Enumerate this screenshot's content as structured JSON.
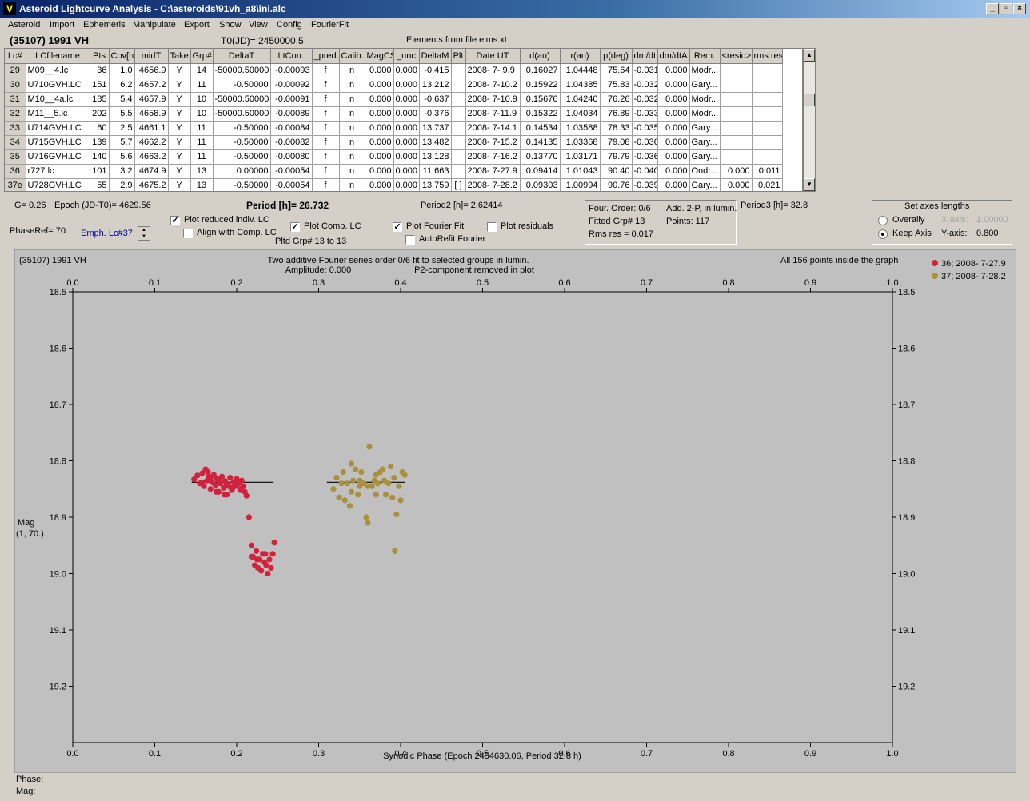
{
  "window": {
    "title": "Asteroid Lightcurve Analysis - C:\\asteroids\\91vh_a8\\ini.alc",
    "app_icon": "V"
  },
  "menu": [
    "Asteroid",
    "Import",
    "Ephemeris",
    "Manipulate",
    "Export",
    "Show",
    "View",
    "Config",
    "FourierFit"
  ],
  "header": {
    "asteroid": "(35107) 1991 VH",
    "t0": "T0(JD)= 2450000.5",
    "elements": "Elements from file elms.xt"
  },
  "table": {
    "columns": [
      "Lc#",
      "LCfilename",
      "Pts",
      "Cov[h]",
      "midT",
      "Take",
      "Grp#",
      "DeltaT",
      "LtCorr.",
      "_pred.",
      "Calib.",
      "MagCS",
      "_unc",
      "DeltaM",
      "Plt",
      "Date UT",
      "d(au)",
      "r(au)",
      "p(deg)",
      "dm/dt",
      "dm/dtA",
      "Rem.",
      "<resid>",
      "rms res"
    ],
    "rows": [
      [
        "29",
        "M09__4.lc",
        "36",
        "1.0",
        "4656.9",
        "Y",
        "14",
        "-50000.50000",
        "-0.00093",
        "f",
        "n",
        "0.000",
        "0.000",
        "-0.415",
        "",
        "2008- 7- 9.9",
        "0.16027",
        "1.04448",
        "75.64",
        "-0.031",
        "0.000",
        "Modr...",
        "",
        ""
      ],
      [
        "30",
        "U710GVH.LC",
        "151",
        "6.2",
        "4657.2",
        "Y",
        "11",
        "-0.50000",
        "-0.00092",
        "f",
        "n",
        "0.000",
        "0.000",
        "13.212",
        "",
        "2008- 7-10.2",
        "0.15922",
        "1.04385",
        "75.83",
        "-0.032",
        "0.000",
        "Gary...",
        "",
        ""
      ],
      [
        "31",
        "M10__4a.lc",
        "185",
        "5.4",
        "4657.9",
        "Y",
        "10",
        "-50000.50000",
        "-0.00091",
        "f",
        "n",
        "0.000",
        "0.000",
        "-0.637",
        "",
        "2008- 7-10.9",
        "0.15676",
        "1.04240",
        "76.26",
        "-0.032",
        "0.000",
        "Modr...",
        "",
        ""
      ],
      [
        "32",
        "M11__5.lc",
        "202",
        "5.5",
        "4658.9",
        "Y",
        "10",
        "-50000.50000",
        "-0.00089",
        "f",
        "n",
        "0.000",
        "0.000",
        "-0.376",
        "",
        "2008- 7-11.9",
        "0.15322",
        "1.04034",
        "76.89",
        "-0.033",
        "0.000",
        "Modr...",
        "",
        ""
      ],
      [
        "33",
        "U714GVH.LC",
        "60",
        "2.5",
        "4661.1",
        "Y",
        "11",
        "-0.50000",
        "-0.00084",
        "f",
        "n",
        "0.000",
        "0.000",
        "13.737",
        "",
        "2008- 7-14.1",
        "0.14534",
        "1.03588",
        "78.33",
        "-0.035",
        "0.000",
        "Gary...",
        "",
        ""
      ],
      [
        "34",
        "U715GVH.LC",
        "139",
        "5.7",
        "4662.2",
        "Y",
        "11",
        "-0.50000",
        "-0.00082",
        "f",
        "n",
        "0.000",
        "0.000",
        "13.482",
        "",
        "2008- 7-15.2",
        "0.14135",
        "1.03368",
        "79.08",
        "-0.036",
        "0.000",
        "Gary...",
        "",
        ""
      ],
      [
        "35",
        "U716GVH.LC",
        "140",
        "5.6",
        "4663.2",
        "Y",
        "11",
        "-0.50000",
        "-0.00080",
        "f",
        "n",
        "0.000",
        "0.000",
        "13.128",
        "",
        "2008- 7-16.2",
        "0.13770",
        "1.03171",
        "79.79",
        "-0.036",
        "0.000",
        "Gary...",
        "",
        ""
      ],
      [
        "36",
        "r727.lc",
        "101",
        "3.2",
        "4674.9",
        "Y",
        "13",
        "0.00000",
        "-0.00054",
        "f",
        "n",
        "0.000",
        "0.000",
        "11.663",
        "",
        "2008- 7-27.9",
        "0.09414",
        "1.01043",
        "90.40",
        "-0.040",
        "0.000",
        "Ondr...",
        "0.000",
        "0.011"
      ],
      [
        "37e",
        "U728GVH.LC",
        "55",
        "2.9",
        "4675.2",
        "Y",
        "13",
        "-0.50000",
        "-0.00054",
        "f",
        "n",
        "0.000",
        "0.000",
        "13.759",
        "[ ]",
        "2008- 7-28.2",
        "0.09303",
        "1.00994",
        "90.76",
        "-0.039",
        "0.000",
        "Gary...",
        "0.000",
        "0.021"
      ]
    ]
  },
  "controls": {
    "g": "G= 0.26",
    "epoch": "Epoch (JD-T0)= 4629.56",
    "period": "Period [h]= 26.732",
    "period2": "Period2 [h]= 2.62414",
    "period3": "Period3 [h]= 32.8",
    "phaseref": "PhaseRef= 70.",
    "emph": "Emph. Lc#37:",
    "plot_reduced": "Plot reduced indiv. LC",
    "align": "Align with Comp. LC",
    "plot_comp": "Plot Comp. LC",
    "pltd_grp": "Pltd Grp#  13 to   13",
    "plot_fourier": "Plot Fourier Fit",
    "autorefit": "AutoRefit Fourier",
    "plot_residuals": "Plot residuals",
    "four_order": "Four. Order:  0/6",
    "add2p": "Add. 2-P, in lumin.",
    "fitted_grp": "Fitted Grp# 13",
    "points": "Points: 117",
    "rms": "Rms res     = 0.017",
    "axes_title": "Set axes lengths",
    "overally": "Overally",
    "keep_axis": "Keep Axis",
    "xaxis_label": "X-axis:",
    "xaxis_val": "1.00000",
    "yaxis_label": "Y-axis:",
    "yaxis_val": "0.800"
  },
  "plot": {
    "asteroid": "(35107) 1991 VH",
    "desc1": "Two additive Fourier series order 0/6 fit to selected groups in lumin.",
    "desc2": "Amplitude: 0.000",
    "desc3": "P2-component removed in plot",
    "inside": "All 156 points inside the graph",
    "legend": [
      {
        "name": "36; 2008- 7-27.9",
        "color": "#d0223c"
      },
      {
        "name": "37; 2008- 7-28.2",
        "color": "#a8903c"
      }
    ],
    "ylabel1": "Mag",
    "ylabel2": "(1, 70.)",
    "xlabel": "Synodic Phase (Epoch 2454630.06, Period 32.8 h)"
  },
  "status": {
    "phase": "Phase:",
    "mag": "Mag:"
  },
  "chart_data": {
    "type": "scatter",
    "xlim": [
      0,
      1
    ],
    "ylim": [
      18.5,
      19.3
    ],
    "y_inverted": true,
    "x_ticks": [
      0.0,
      0.1,
      0.2,
      0.3,
      0.4,
      0.5,
      0.6,
      0.7,
      0.8,
      0.9,
      1.0
    ],
    "y_ticks": [
      18.5,
      18.6,
      18.7,
      18.8,
      18.9,
      19.0,
      19.1,
      19.2
    ],
    "fit_lines": [
      {
        "series": 0,
        "x": [
          0.145,
          0.245
        ],
        "y": 18.838
      },
      {
        "series": 1,
        "x": [
          0.31,
          0.405
        ],
        "y": 18.838
      }
    ],
    "series": [
      {
        "name": "36; 2008- 7-27.9",
        "color": "#d0223c",
        "points": [
          [
            0.148,
            18.833
          ],
          [
            0.152,
            18.826
          ],
          [
            0.155,
            18.84
          ],
          [
            0.158,
            18.822
          ],
          [
            0.16,
            18.845
          ],
          [
            0.162,
            18.815
          ],
          [
            0.164,
            18.835
          ],
          [
            0.166,
            18.828
          ],
          [
            0.168,
            18.85
          ],
          [
            0.17,
            18.838
          ],
          [
            0.172,
            18.825
          ],
          [
            0.174,
            18.843
          ],
          [
            0.176,
            18.832
          ],
          [
            0.178,
            18.855
          ],
          [
            0.18,
            18.84
          ],
          [
            0.182,
            18.828
          ],
          [
            0.184,
            18.848
          ],
          [
            0.186,
            18.836
          ],
          [
            0.188,
            18.86
          ],
          [
            0.19,
            18.845
          ],
          [
            0.192,
            18.83
          ],
          [
            0.194,
            18.852
          ],
          [
            0.196,
            18.838
          ],
          [
            0.198,
            18.845
          ],
          [
            0.2,
            18.832
          ],
          [
            0.202,
            18.84
          ],
          [
            0.204,
            18.85
          ],
          [
            0.206,
            18.835
          ],
          [
            0.208,
            18.845
          ],
          [
            0.21,
            18.855
          ],
          [
            0.212,
            18.862
          ],
          [
            0.215,
            18.9
          ],
          [
            0.218,
            18.95
          ],
          [
            0.22,
            18.97
          ],
          [
            0.222,
            18.985
          ],
          [
            0.224,
            18.96
          ],
          [
            0.226,
            18.99
          ],
          [
            0.228,
            18.975
          ],
          [
            0.23,
            18.995
          ],
          [
            0.232,
            18.965
          ],
          [
            0.234,
            18.98
          ],
          [
            0.236,
            18.985
          ],
          [
            0.238,
            19.0
          ],
          [
            0.24,
            18.975
          ],
          [
            0.242,
            18.99
          ],
          [
            0.244,
            18.965
          ],
          [
            0.246,
            18.945
          ],
          [
            0.165,
            18.82
          ],
          [
            0.175,
            18.855
          ],
          [
            0.185,
            18.86
          ],
          [
            0.195,
            18.848
          ],
          [
            0.205,
            18.852
          ],
          [
            0.225,
            18.975
          ],
          [
            0.235,
            18.965
          ],
          [
            0.158,
            18.838
          ],
          [
            0.168,
            18.83
          ],
          [
            0.178,
            18.835
          ],
          [
            0.188,
            18.842
          ],
          [
            0.198,
            18.836
          ],
          [
            0.218,
            18.97
          ]
        ]
      },
      {
        "name": "37; 2008- 7-28.2",
        "color": "#a8903c",
        "points": [
          [
            0.318,
            18.85
          ],
          [
            0.322,
            18.83
          ],
          [
            0.325,
            18.865
          ],
          [
            0.328,
            18.84
          ],
          [
            0.33,
            18.82
          ],
          [
            0.332,
            18.87
          ],
          [
            0.335,
            18.84
          ],
          [
            0.338,
            18.88
          ],
          [
            0.34,
            18.805
          ],
          [
            0.342,
            18.835
          ],
          [
            0.345,
            18.815
          ],
          [
            0.348,
            18.86
          ],
          [
            0.35,
            18.845
          ],
          [
            0.352,
            18.82
          ],
          [
            0.355,
            18.84
          ],
          [
            0.358,
            18.9
          ],
          [
            0.36,
            18.91
          ],
          [
            0.362,
            18.775
          ],
          [
            0.365,
            18.845
          ],
          [
            0.368,
            18.835
          ],
          [
            0.37,
            18.86
          ],
          [
            0.372,
            18.84
          ],
          [
            0.375,
            18.82
          ],
          [
            0.378,
            18.815
          ],
          [
            0.38,
            18.835
          ],
          [
            0.382,
            18.86
          ],
          [
            0.385,
            18.84
          ],
          [
            0.388,
            18.81
          ],
          [
            0.39,
            18.865
          ],
          [
            0.392,
            18.83
          ],
          [
            0.395,
            18.895
          ],
          [
            0.398,
            18.845
          ],
          [
            0.4,
            18.87
          ],
          [
            0.402,
            18.82
          ],
          [
            0.405,
            18.825
          ],
          [
            0.393,
            18.96
          ],
          [
            0.36,
            18.845
          ],
          [
            0.35,
            18.835
          ],
          [
            0.34,
            18.855
          ],
          [
            0.37,
            18.825
          ]
        ]
      }
    ]
  }
}
